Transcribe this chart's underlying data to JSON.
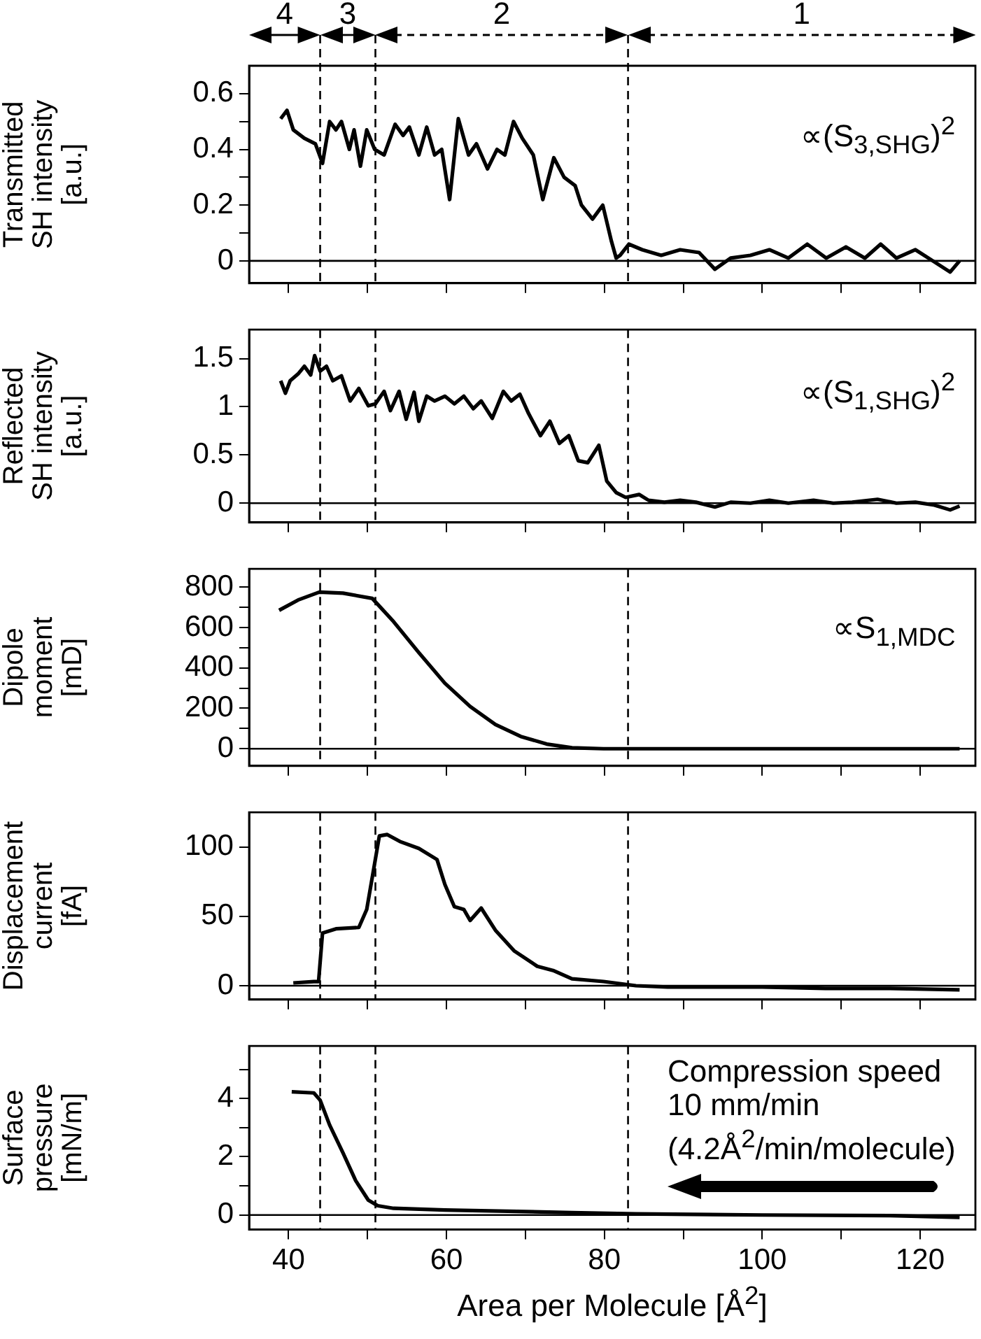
{
  "chart_data": [
    {
      "type": "line",
      "ylabel": "Transmitted\nSH intensity\n[a.u.]",
      "color": "#000000",
      "marker": "none",
      "line_style": "solid",
      "legend": false,
      "grid": false,
      "tick_labels": "y",
      "annotations": [
        "4",
        "3",
        "2",
        "1",
        "∝(S$_{3,SHG}$)$^{2}$"
      ],
      "ref_lines": [
        {
          "axis": "x",
          "value": 44,
          "line_style": "dashed",
          "color": "#000000"
        },
        {
          "axis": "x",
          "value": 51,
          "line_style": "dashed",
          "color": "#000000"
        },
        {
          "axis": "x",
          "value": 83,
          "line_style": "dashed",
          "color": "#000000"
        },
        {
          "axis": "y",
          "value": 0,
          "line_style": "solid",
          "color": "#000000"
        }
      ],
      "xlim": [
        35,
        127
      ],
      "xticks": [
        40,
        {
          "value": 50,
          "label": null
        },
        60,
        {
          "value": 70,
          "label": null
        },
        80,
        {
          "value": 90,
          "label": null
        },
        100,
        {
          "value": 110,
          "label": null
        },
        120
      ],
      "ylim": [
        -0.08,
        0.7
      ],
      "yticks": [
        0,
        {
          "value": 0.1,
          "label": null
        },
        0.2,
        {
          "value": 0.3,
          "label": null
        },
        0.4,
        {
          "value": 0.5,
          "label": null
        },
        0.6
      ],
      "x": [
        39,
        39.8,
        40.6,
        42,
        43.4,
        44.3,
        45.2,
        46,
        46.7,
        47.7,
        48.3,
        49.1,
        49.9,
        50.9,
        52.1,
        53.5,
        54.5,
        55.3,
        56.5,
        57.5,
        58.5,
        59.4,
        60.4,
        61.5,
        62.8,
        63.8,
        65.2,
        66.4,
        67.4,
        68.5,
        69.6,
        71,
        72.2,
        73.6,
        74.9,
        76.3,
        77.1,
        78.5,
        79.8,
        80.9,
        81.5,
        82,
        83.1,
        84.8,
        87.2,
        89.6,
        92,
        94,
        96,
        98.5,
        100.9,
        103.3,
        105.7,
        108.1,
        110.6,
        113,
        115,
        117,
        119.4,
        121.6,
        123.8,
        125
      ],
      "values": [
        0.51,
        0.54,
        0.47,
        0.44,
        0.42,
        0.35,
        0.5,
        0.47,
        0.5,
        0.4,
        0.47,
        0.34,
        0.47,
        0.4,
        0.38,
        0.49,
        0.45,
        0.48,
        0.38,
        0.48,
        0.38,
        0.4,
        0.22,
        0.51,
        0.38,
        0.42,
        0.33,
        0.4,
        0.38,
        0.5,
        0.44,
        0.38,
        0.22,
        0.37,
        0.3,
        0.27,
        0.2,
        0.15,
        0.2,
        0.07,
        0.01,
        0.02,
        0.06,
        0.04,
        0.02,
        0.04,
        0.03,
        -0.03,
        0.01,
        0.02,
        0.04,
        0.01,
        0.06,
        0.01,
        0.05,
        0.01,
        0.06,
        0.01,
        0.04,
        0,
        -0.04,
        0
      ]
    },
    {
      "type": "line",
      "ylabel": "Reflected\nSH intensity\n[a.u.]",
      "color": "#000000",
      "marker": "none",
      "line_style": "solid",
      "legend": false,
      "grid": false,
      "tick_labels": "y",
      "annotations": [
        "∝(S$_{1,SHG}$)$^{2}$"
      ],
      "ref_lines": [
        {
          "axis": "x",
          "value": 44,
          "line_style": "dashed",
          "color": "#000000"
        },
        {
          "axis": "x",
          "value": 51,
          "line_style": "dashed",
          "color": "#000000"
        },
        {
          "axis": "x",
          "value": 83,
          "line_style": "dashed",
          "color": "#000000"
        },
        {
          "axis": "y",
          "value": 0,
          "line_style": "solid",
          "color": "#000000"
        }
      ],
      "xlim": [
        35,
        127
      ],
      "xticks": [
        40,
        {
          "value": 50,
          "label": null
        },
        60,
        {
          "value": 70,
          "label": null
        },
        80,
        {
          "value": 90,
          "label": null
        },
        100,
        {
          "value": 110,
          "label": null
        },
        120
      ],
      "ylim": [
        -0.2,
        1.8
      ],
      "yticks": [
        0,
        0.5,
        1,
        1.5
      ],
      "x": [
        39,
        39.6,
        40.2,
        41.2,
        42,
        42.8,
        43.3,
        44,
        44.8,
        45.6,
        46.7,
        47.8,
        48.9,
        50.1,
        51,
        52.1,
        52.9,
        54,
        54.9,
        55.9,
        56.5,
        57.5,
        58.5,
        59.8,
        61,
        62.2,
        63.4,
        64.4,
        65.8,
        67.2,
        68.2,
        69.3,
        70.4,
        71.9,
        73.1,
        74.3,
        75.5,
        76.7,
        77.9,
        79.3,
        80.3,
        81.1,
        81.5,
        82.7,
        84.4,
        85.6,
        87.6,
        89.6,
        91.6,
        94,
        96,
        98.5,
        100.9,
        103.3,
        106.5,
        109,
        111.4,
        114.6,
        117,
        119.4,
        121.8,
        123.8,
        125
      ],
      "values": [
        1.27,
        1.14,
        1.27,
        1.34,
        1.42,
        1.33,
        1.53,
        1.37,
        1.42,
        1.27,
        1.32,
        1.06,
        1.19,
        1.01,
        1.03,
        1.16,
        0.96,
        1.16,
        0.87,
        1.15,
        0.85,
        1.11,
        1.06,
        1.11,
        1.03,
        1.11,
        0.98,
        1.06,
        0.88,
        1.16,
        1.06,
        1.13,
        0.93,
        0.7,
        0.85,
        0.62,
        0.7,
        0.44,
        0.42,
        0.6,
        0.23,
        0.15,
        0.11,
        0.06,
        0.09,
        0.03,
        0.01,
        0.03,
        0.01,
        -0.04,
        0.01,
        0,
        0.03,
        0,
        0.03,
        0,
        0.01,
        0.04,
        0,
        0.01,
        -0.02,
        -0.07,
        -0.03
      ]
    },
    {
      "type": "line",
      "ylabel": "Dipole\nmoment\n[mD]",
      "color": "#000000",
      "marker": "none",
      "line_style": "solid",
      "legend": false,
      "grid": false,
      "tick_labels": "y",
      "annotations": [
        "∝S$_{1,MDC}$"
      ],
      "ref_lines": [
        {
          "axis": "x",
          "value": 44,
          "line_style": "dashed",
          "color": "#000000"
        },
        {
          "axis": "x",
          "value": 51,
          "line_style": "dashed",
          "color": "#000000"
        },
        {
          "axis": "x",
          "value": 83,
          "line_style": "dashed",
          "color": "#000000"
        },
        {
          "axis": "y",
          "value": 0,
          "line_style": "solid",
          "color": "#000000"
        }
      ],
      "xlim": [
        35,
        127
      ],
      "xticks": [
        40,
        {
          "value": 50,
          "label": null
        },
        60,
        {
          "value": 70,
          "label": null
        },
        80,
        {
          "value": 90,
          "label": null
        },
        100,
        {
          "value": 110,
          "label": null
        },
        120
      ],
      "ylim": [
        -85,
        890
      ],
      "yticks": [
        0,
        {
          "value": 100,
          "label": null
        },
        200,
        {
          "value": 300,
          "label": null
        },
        400,
        {
          "value": 500,
          "label": null
        },
        600,
        {
          "value": 700,
          "label": null
        },
        800
      ],
      "x": [
        38.8,
        41.2,
        43.9,
        46.9,
        50.6,
        53.3,
        56.5,
        59.8,
        63,
        66.2,
        69.4,
        72.7,
        75.9,
        79.9,
        84,
        100,
        125
      ],
      "values": [
        685,
        736,
        775,
        770,
        744,
        629,
        476,
        324,
        209,
        120,
        61,
        23,
        5,
        0,
        0,
        0,
        0
      ]
    },
    {
      "type": "line",
      "ylabel": "Displacement\ncurrent\n[fA]",
      "color": "#000000",
      "marker": "none",
      "line_style": "solid",
      "legend": false,
      "grid": false,
      "tick_labels": "y",
      "ref_lines": [
        {
          "axis": "x",
          "value": 44,
          "line_style": "dashed",
          "color": "#000000"
        },
        {
          "axis": "x",
          "value": 51,
          "line_style": "dashed",
          "color": "#000000"
        },
        {
          "axis": "x",
          "value": 83,
          "line_style": "dashed",
          "color": "#000000"
        },
        {
          "axis": "y",
          "value": 0,
          "line_style": "solid",
          "color": "#000000"
        }
      ],
      "xlim": [
        35,
        127
      ],
      "xticks": [
        40,
        {
          "value": 50,
          "label": null
        },
        60,
        {
          "value": 70,
          "label": null
        },
        80,
        {
          "value": 90,
          "label": null
        },
        100,
        {
          "value": 110,
          "label": null
        },
        120
      ],
      "ylim": [
        -10,
        125
      ],
      "yticks": [
        0,
        50,
        100
      ],
      "x": [
        40.6,
        43.2,
        43.8,
        44.3,
        46,
        48.9,
        49.9,
        50.9,
        51.5,
        52.5,
        54.1,
        56.5,
        58.8,
        59.8,
        61,
        62.2,
        63,
        64.4,
        66.2,
        68.6,
        71.5,
        73.5,
        75.9,
        79.9,
        84,
        88,
        92,
        100,
        108,
        116.2,
        125
      ],
      "values": [
        2,
        3,
        3,
        38,
        41,
        42,
        55,
        88,
        108,
        109,
        104,
        99,
        91,
        73,
        57,
        55,
        47,
        56,
        40,
        25,
        14,
        11,
        5,
        3,
        0,
        -1,
        -1,
        -1,
        -2,
        -2,
        -3
      ]
    },
    {
      "type": "line",
      "ylabel": "Surface\npressure\n[mN/m]",
      "xlabel": "Area per Molecule [Å$^{2}$]",
      "color": "#000000",
      "marker": "none",
      "line_style": "solid",
      "legend": false,
      "grid": false,
      "annotations": [
        "Compression speed\n10 mm/min\n(4.2Å$^{2}$/min/molecule)"
      ],
      "ref_lines": [
        {
          "axis": "x",
          "value": 44,
          "line_style": "dashed",
          "color": "#000000"
        },
        {
          "axis": "x",
          "value": 51,
          "line_style": "dashed",
          "color": "#000000"
        },
        {
          "axis": "x",
          "value": 83,
          "line_style": "dashed",
          "color": "#000000"
        },
        {
          "axis": "y",
          "value": 0,
          "line_style": "solid",
          "color": "#000000"
        }
      ],
      "xlim": [
        35,
        127
      ],
      "xticks": [
        40,
        {
          "value": 50,
          "label": null
        },
        60,
        {
          "value": 70,
          "label": null
        },
        80,
        {
          "value": 90,
          "label": null
        },
        100,
        {
          "value": 110,
          "label": null
        },
        120
      ],
      "ylim": [
        -0.5,
        5.8
      ],
      "yticks": [
        0,
        {
          "value": 1,
          "label": null
        },
        2,
        {
          "value": 3,
          "label": null
        },
        4,
        {
          "value": 5,
          "label": null
        }
      ],
      "x": [
        40.4,
        43.2,
        44,
        45.2,
        46.9,
        48.5,
        50.1,
        51.3,
        53.3,
        59.8,
        67.8,
        75.9,
        84,
        100,
        116.2,
        125
      ],
      "values": [
        4.23,
        4.19,
        3.94,
        3.09,
        2.13,
        1.18,
        0.51,
        0.32,
        0.23,
        0.17,
        0.13,
        0.08,
        0.04,
        0,
        -0.02,
        -0.08
      ]
    }
  ]
}
